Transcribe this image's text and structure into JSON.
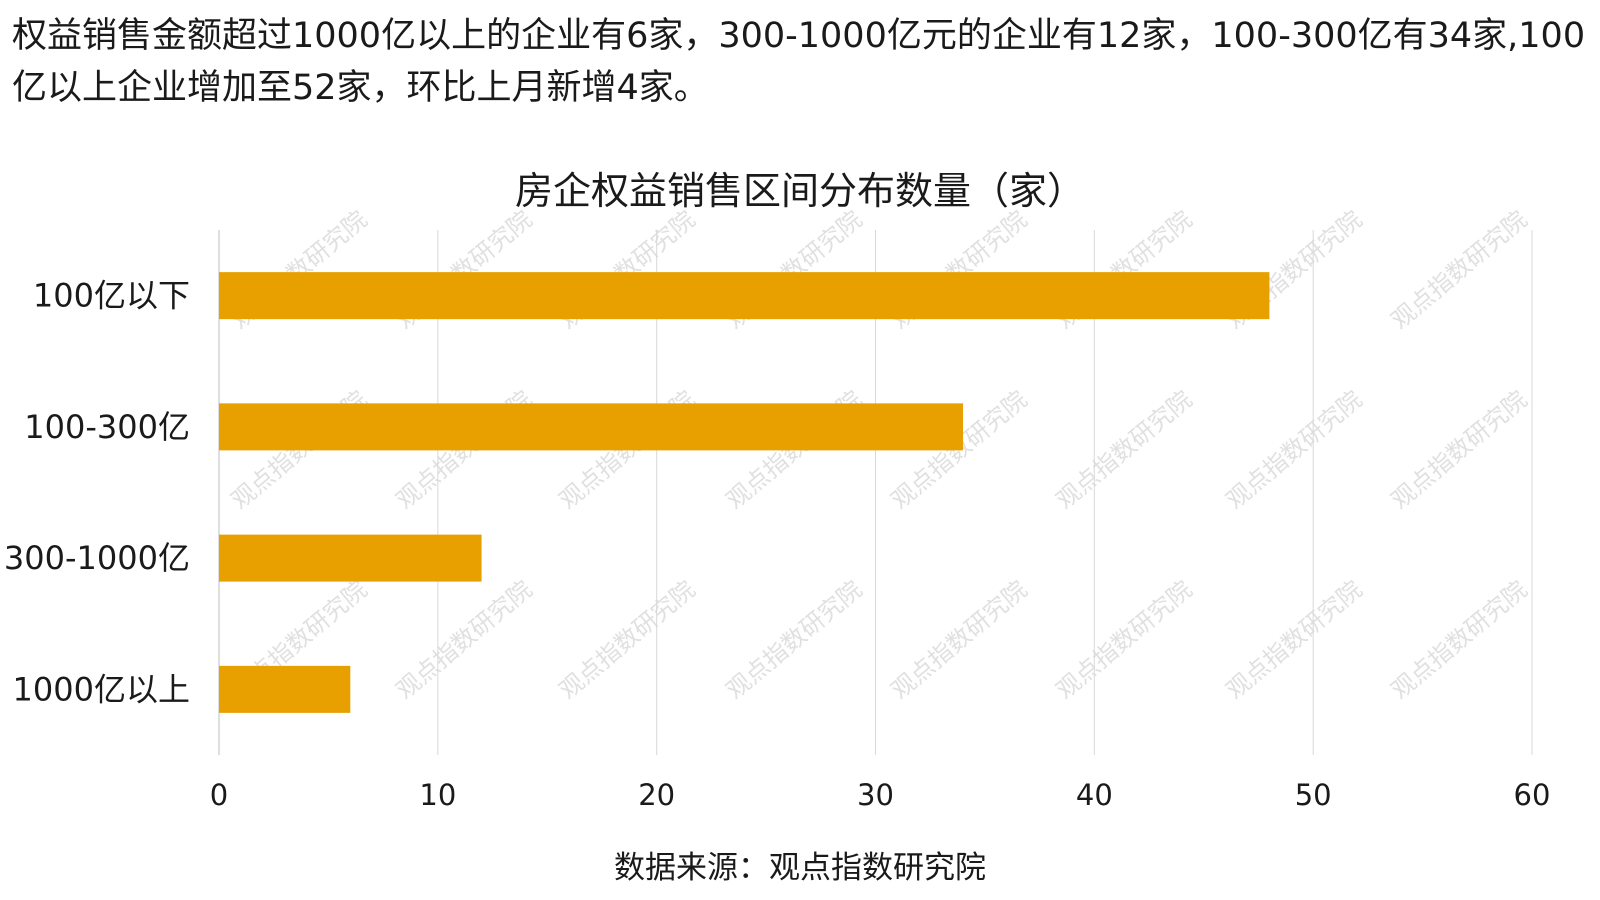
{
  "intro_text": "权益销售金额超过1000亿以上的企业有6家，300-1000亿元的企业有12家，100-300亿有34家,100亿以上企业增加至52家，环比上月新增4家。",
  "watermark_text": "观点指数研究院",
  "source_text": "数据来源：观点指数研究院",
  "colors": {
    "bar": "#E8A000",
    "grid": "#d9d9d9",
    "watermark": "#c8c8c8"
  },
  "chart_data": {
    "type": "bar",
    "orientation": "horizontal",
    "title": "房企权益销售区间分布数量（家）",
    "categories": [
      "100亿以下",
      "100-300亿",
      "300-1000亿",
      "1000亿以上"
    ],
    "values": [
      48,
      34,
      12,
      6
    ],
    "xlim": [
      0,
      60
    ],
    "xticks": [
      "0",
      "10",
      "20",
      "30",
      "40",
      "50",
      "60"
    ],
    "grid": true,
    "legend": "none"
  }
}
